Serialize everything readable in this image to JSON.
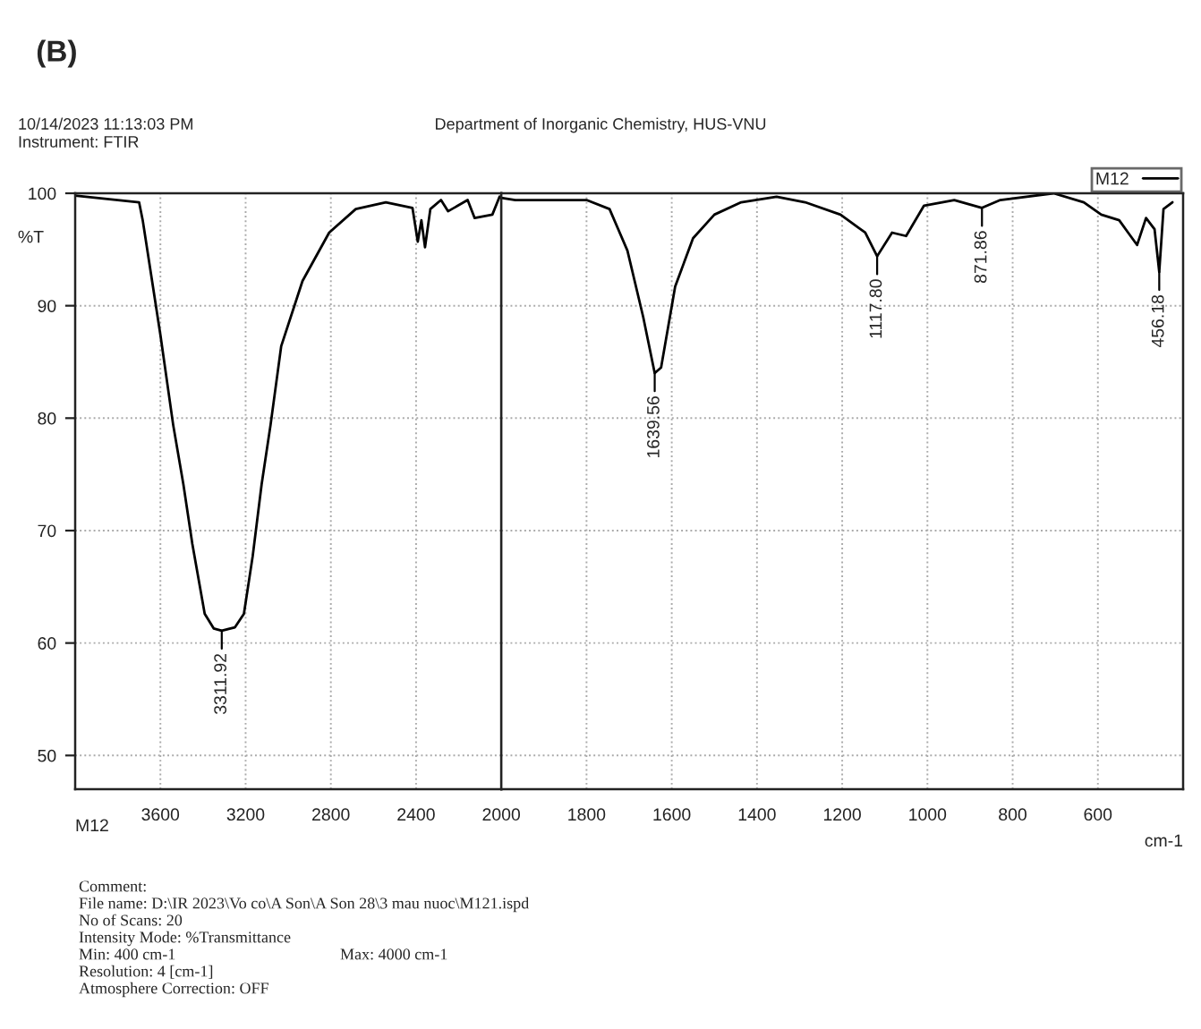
{
  "chart_data": [
    {
      "type": "line",
      "title": "(B)",
      "ylabel": "%T",
      "xlim": [
        4000,
        2000
      ],
      "xticks": [
        3600,
        3200,
        2800,
        2400,
        2000
      ],
      "ylim": [
        47,
        100
      ],
      "yticks": [
        50,
        60,
        70,
        80,
        90,
        100
      ],
      "grid": true,
      "series": [
        {
          "color": "#000000",
          "x": [
            4000,
            3800,
            3700,
            3683,
            3600,
            3540,
            3492,
            3450,
            3392,
            3350,
            3312,
            3250,
            3208,
            3167,
            3125,
            3083,
            3033,
            2933,
            2808,
            2683,
            2542,
            2417,
            2392,
            2375,
            2358,
            2333,
            2283,
            2250,
            2158,
            2125,
            2042,
            2008
          ],
          "values": [
            99.8,
            99.4,
            99.2,
            97.6,
            87.4,
            79.4,
            74.1,
            68.8,
            62.6,
            61.3,
            61.1,
            61.4,
            62.6,
            67.7,
            74.1,
            79.4,
            86.4,
            92.2,
            96.5,
            98.6,
            99.2,
            98.7,
            95.7,
            97.6,
            95.2,
            98.6,
            99.4,
            98.4,
            99.4,
            97.8,
            98.1,
            99.7
          ]
        }
      ],
      "annotations": [
        "10/14/2023 11:13:03 PM",
        "Instrument: FTIR",
        "Department of Inorganic Chemistry, HUS-VNU",
        "M12",
        "Comment:",
        "File name: D:\\IR 2023\\Vo co\\A Son\\A Son 28\\3 mau nuoc\\M121.ispd",
        "No of Scans: 20",
        "Intensity Mode: %Transmittance",
        "Min: 400 cm-1",
        "Max: 4000 cm-1",
        "Resolution: 4 [cm-1]",
        "Atmosphere Correction: OFF",
        {
          "text": "3311.92",
          "x": 3312,
          "y": 61.1
        }
      ]
    },
    {
      "type": "line",
      "xlabel": "cm-1",
      "xlim": [
        2000,
        400
      ],
      "xticks": [
        1800,
        1600,
        1400,
        1200,
        1000,
        800,
        600
      ],
      "ylim": [
        47,
        100
      ],
      "yticks": [
        50,
        60,
        70,
        80,
        90,
        100
      ],
      "tick_labels": "x",
      "grid": true,
      "legend": "top right",
      "series": [
        {
          "name": "M12",
          "color": "#000000",
          "x": [
            2000,
            1967,
            1854,
            1800,
            1746,
            1704,
            1667,
            1640,
            1625,
            1592,
            1550,
            1500,
            1437,
            1354,
            1287,
            1204,
            1146,
            1118,
            1083,
            1050,
            1008,
            937,
            872,
            829,
            704,
            633,
            592,
            550,
            529,
            508,
            487,
            467,
            456,
            446,
            425
          ],
          "values": [
            99.6,
            99.4,
            99.4,
            99.4,
            98.6,
            94.9,
            89.0,
            84.0,
            84.5,
            91.7,
            96.0,
            98.1,
            99.2,
            99.7,
            99.2,
            98.1,
            96.5,
            94.4,
            96.5,
            96.2,
            98.9,
            99.4,
            98.7,
            99.4,
            100,
            99.2,
            98.1,
            97.6,
            96.5,
            95.4,
            97.8,
            96.8,
            93.0,
            98.6,
            99.2
          ]
        }
      ],
      "annotations": [
        {
          "text": "1639.56",
          "x": 1640,
          "y": 84.0
        },
        {
          "text": "1117.80",
          "x": 1118,
          "y": 94.4
        },
        {
          "text": "871.86",
          "x": 872,
          "y": 98.7
        },
        {
          "text": "456.18",
          "x": 456,
          "y": 93.0
        }
      ]
    }
  ]
}
